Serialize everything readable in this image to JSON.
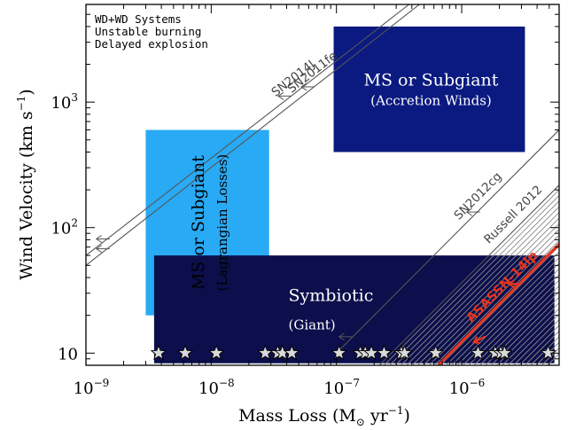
{
  "chart_data": {
    "type": "scatter",
    "xlabel": "Mass Loss (M",
    "xlabel_sub": "⊙",
    "xlabel_tail": " yr",
    "xlabel_exp": "−1",
    "xlabel_close": ")",
    "ylabel": "Wind Velocity (km s",
    "ylabel_exp": "−1",
    "ylabel_close": ")",
    "xscale": "log",
    "yscale": "log",
    "xlim": [
      1e-09,
      6e-06
    ],
    "ylim": [
      8,
      6000
    ],
    "x_ticks": [
      {
        "value": 1e-09,
        "base": "10",
        "exp": "−9"
      },
      {
        "value": 1e-08,
        "base": "10",
        "exp": "−8"
      },
      {
        "value": 1e-07,
        "base": "10",
        "exp": "−7"
      },
      {
        "value": 1e-06,
        "base": "10",
        "exp": "−6"
      }
    ],
    "y_ticks": [
      {
        "value": 10,
        "base": "10",
        "exp": ""
      },
      {
        "value": 100,
        "base": "10",
        "exp": "2"
      },
      {
        "value": 1000,
        "base": "10",
        "exp": "3"
      }
    ],
    "corner_note": [
      "WD+WD Systems",
      "Unstable burning",
      "Delayed explosion"
    ],
    "regions": [
      {
        "x0": 9.5e-08,
        "x1": 3.2e-06,
        "y0": 400,
        "y1": 4000,
        "color": "#0b1a80",
        "labels": [
          "MS or Subgiant",
          "(Accretion Winds)"
        ],
        "text_color": "#ffffff",
        "orient": "h"
      },
      {
        "x0": 3e-09,
        "x1": 2.9e-08,
        "y0": 20,
        "y1": 600,
        "color": "#29aaf5",
        "labels": [
          "MS or Subgiant",
          "(Lagrangian Losses)"
        ],
        "text_color": "#000000",
        "orient": "v"
      },
      {
        "x0": 3.5e-09,
        "x1": 5.5e-06,
        "y0": 8.3,
        "y1": 60,
        "color": "#0c0f4c",
        "labels": [
          "Symbiotic",
          "(Giant)"
        ],
        "text_color": "#ffffff",
        "orient": "h"
      }
    ],
    "constraints": [
      {
        "label": "SN2014J",
        "x0": 1e-09,
        "y0": 60,
        "x1": 3.8e-07,
        "y1": 6000,
        "arrow_at": 3.6e-08,
        "color": "#555555"
      },
      {
        "label": "SN2011fe",
        "x0": 1e-09,
        "y0": 50,
        "x1": 4.6e-07,
        "y1": 6000,
        "arrow_at": 5.5e-08,
        "color": "#555555"
      },
      {
        "label": "SN2012cg",
        "x0": 1e-07,
        "y0": 10,
        "x1": 6e-06,
        "y1": 600,
        "arrow_at": 1.15e-06,
        "color": "#555555"
      },
      {
        "label": "Russell 2012",
        "x0": 2.2e-07,
        "y0": 8,
        "x1": 6e-06,
        "y1": 218,
        "arrow_at": null,
        "color": "#555555"
      },
      {
        "label": "ASASSN-14lp",
        "x0": 6.5e-07,
        "y0": 8,
        "x1": 6e-06,
        "y1": 74,
        "arrow_at": 2.5e-06,
        "color": "#e8331c"
      }
    ],
    "stars": {
      "y": 10,
      "x": [
        3.8e-09,
        6.2e-09,
        1.1e-08,
        2.7e-08,
        3.4e-08,
        3.7e-08,
        4.4e-08,
        1.05e-07,
        1.55e-07,
        1.7e-07,
        1.9e-07,
        2.4e-07,
        3.3e-07,
        3.5e-07,
        6.2e-07,
        1.35e-06,
        1.85e-06,
        2.05e-06,
        2.2e-06,
        4.9e-06
      ]
    }
  }
}
